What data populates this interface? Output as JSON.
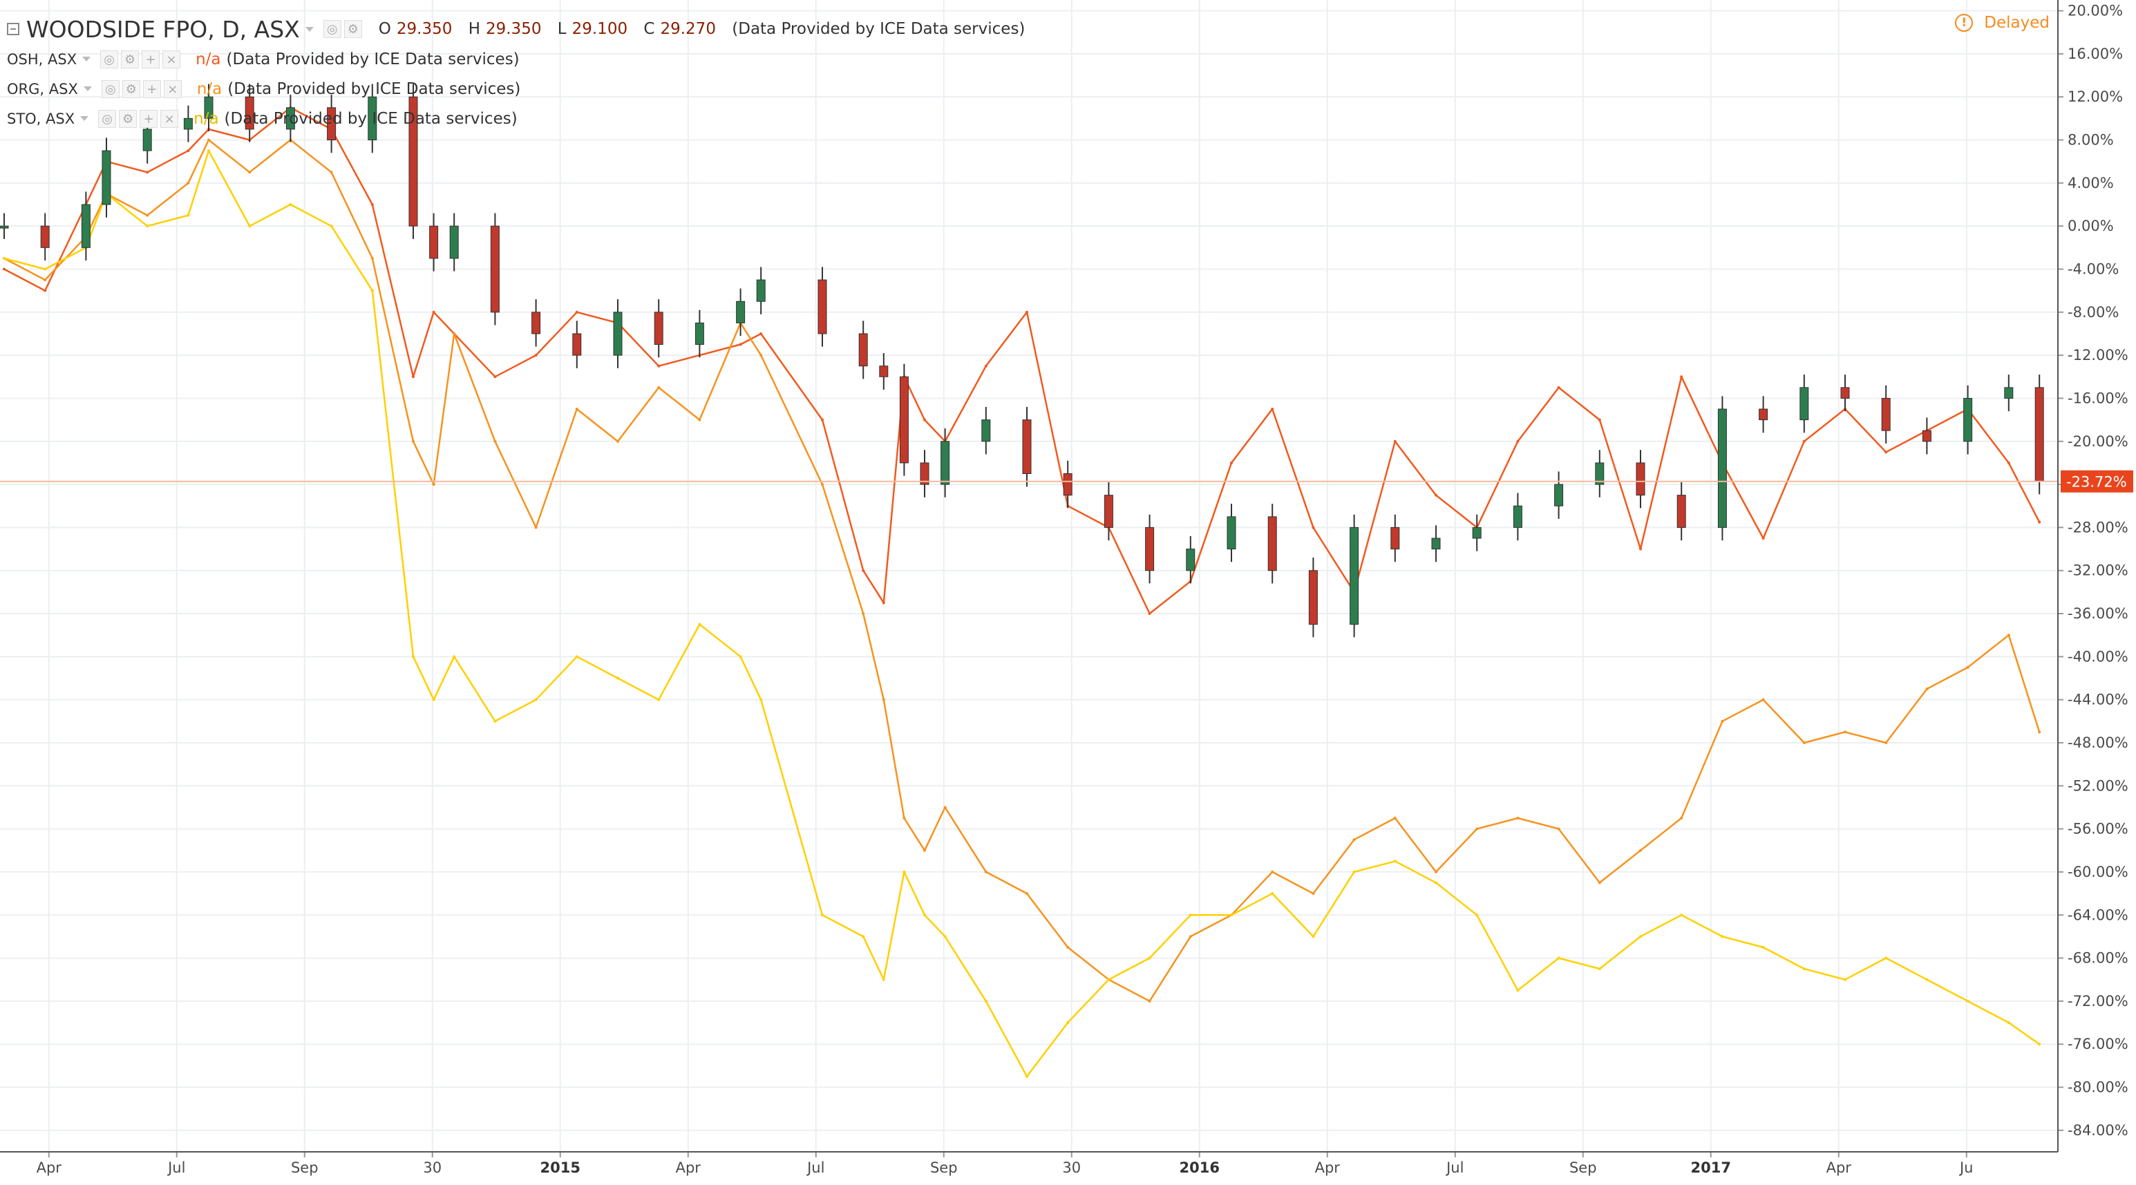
{
  "header": {
    "main_symbol": "WOODSIDE FPO, D, ASX",
    "ohlc": [
      {
        "key": "O",
        "value": "29.350"
      },
      {
        "key": "H",
        "value": "29.350"
      },
      {
        "key": "L",
        "value": "29.100"
      },
      {
        "key": "C",
        "value": "29.270"
      }
    ],
    "source": "(Data Provided by ICE Data services)",
    "compare": [
      {
        "symbol": "OSH, ASX",
        "value": "n/a",
        "source": "(Data Provided by ICE Data services)",
        "color": "#f25a1e"
      },
      {
        "symbol": "ORG, ASX",
        "value": "n/a",
        "source": "(Data Provided by ICE Data services)",
        "color": "#f6931e"
      },
      {
        "symbol": "STO, ASX",
        "value": "n/a",
        "source": "(Data Provided by ICE Data services)",
        "color": "#ffd000"
      }
    ],
    "delayed_label": "Delayed"
  },
  "chart_data": {
    "type": "line",
    "title": "WOODSIDE FPO, D, ASX",
    "xlabel": "",
    "ylabel": "",
    "y_unit": "%",
    "ylim": [
      -86,
      21
    ],
    "x_ticks": [
      "Apr",
      "Jul",
      "Sep",
      "30",
      "2015",
      "Apr",
      "Jul",
      "Sep",
      "30",
      "2016",
      "Apr",
      "Jul",
      "Sep",
      "2017",
      "Apr",
      "Ju"
    ],
    "bold_x_ticks": [
      "2015",
      "2016",
      "2017"
    ],
    "y_ticks": [
      "20.00%",
      "16.00%",
      "12.00%",
      "8.00%",
      "4.00%",
      "0.00%",
      "-4.00%",
      "-8.00%",
      "-12.00%",
      "-16.00%",
      "-20.00%",
      "-24.00%",
      "-28.00%",
      "-32.00%",
      "-36.00%",
      "-40.00%",
      "-44.00%",
      "-48.00%",
      "-52.00%",
      "-56.00%",
      "-60.00%",
      "-64.00%",
      "-68.00%",
      "-72.00%",
      "-76.00%",
      "-80.00%",
      "-84.00%"
    ],
    "current_value_label": "-23.72%",
    "current_value": -23.72,
    "grid": true,
    "x_index_range": [
      0,
      100
    ],
    "series": [
      {
        "name": "WOODSIDE FPO, D, ASX",
        "kind": "candlestick",
        "up_color": "#2e7d4f",
        "down_color": "#c0392b",
        "x": [
          0,
          2,
          4,
          5,
          7,
          9,
          10,
          12,
          14,
          16,
          18,
          20,
          21,
          22,
          24,
          26,
          28,
          30,
          32,
          34,
          36,
          37,
          40,
          42,
          43,
          44,
          45,
          46,
          48,
          50,
          52,
          54,
          56,
          58,
          60,
          62,
          64,
          66,
          68,
          70,
          72,
          74,
          76,
          78,
          80,
          82,
          84,
          86,
          88,
          90,
          92,
          94,
          96,
          98,
          99.5
        ],
        "values": [
          0,
          -2,
          2,
          7,
          9,
          10,
          12,
          9,
          11,
          8,
          12,
          0,
          -3,
          0,
          -8,
          -10,
          -12,
          -8,
          -11,
          -9,
          -7,
          -5,
          -10,
          -13,
          -14,
          -22,
          -24,
          -20,
          -18,
          -23,
          -25,
          -28,
          -32,
          -30,
          -27,
          -32,
          -37,
          -28,
          -30,
          -29,
          -28,
          -26,
          -24,
          -22,
          -25,
          -28,
          -17,
          -18,
          -15,
          -16,
          -19,
          -20,
          -16,
          -15,
          -23.72
        ]
      },
      {
        "name": "OSH, ASX",
        "kind": "line",
        "color": "#f25a1e",
        "x": [
          0,
          2,
          4,
          5,
          7,
          9,
          10,
          12,
          14,
          16,
          18,
          20,
          21,
          22,
          24,
          26,
          28,
          30,
          32,
          34,
          36,
          37,
          40,
          42,
          43,
          44,
          45,
          46,
          48,
          50,
          52,
          54,
          56,
          58,
          60,
          62,
          64,
          66,
          68,
          70,
          72,
          74,
          76,
          78,
          80,
          82,
          84,
          86,
          88,
          90,
          92,
          94,
          96,
          98,
          99.5
        ],
        "values": [
          -4,
          -6,
          2,
          6,
          5,
          7,
          9,
          8,
          11,
          9,
          2,
          -14,
          -8,
          -10,
          -14,
          -12,
          -8,
          -9,
          -13,
          -12,
          -11,
          -10,
          -18,
          -32,
          -35,
          -14,
          -18,
          -20,
          -13,
          -8,
          -26,
          -28,
          -36,
          -33,
          -22,
          -17,
          -28,
          -34,
          -20,
          -25,
          -28,
          -20,
          -15,
          -18,
          -30,
          -14,
          -22,
          -29,
          -20,
          -17,
          -21,
          -19,
          -17,
          -22,
          -27.5
        ]
      },
      {
        "name": "ORG, ASX",
        "kind": "line",
        "color": "#f6931e",
        "x": [
          0,
          2,
          4,
          5,
          7,
          9,
          10,
          12,
          14,
          16,
          18,
          20,
          21,
          22,
          24,
          26,
          28,
          30,
          32,
          34,
          36,
          37,
          40,
          42,
          43,
          44,
          45,
          46,
          48,
          50,
          52,
          54,
          56,
          58,
          60,
          62,
          64,
          66,
          68,
          70,
          72,
          74,
          76,
          78,
          80,
          82,
          84,
          86,
          88,
          90,
          92,
          94,
          96,
          98,
          99.5
        ],
        "values": [
          -3,
          -5,
          -1,
          3,
          1,
          4,
          8,
          5,
          8,
          5,
          -3,
          -20,
          -24,
          -10,
          -20,
          -28,
          -17,
          -20,
          -15,
          -18,
          -9,
          -12,
          -24,
          -36,
          -44,
          -55,
          -58,
          -54,
          -60,
          -62,
          -67,
          -70,
          -72,
          -66,
          -64,
          -60,
          -62,
          -57,
          -55,
          -60,
          -56,
          -55,
          -56,
          -61,
          -58,
          -55,
          -46,
          -44,
          -48,
          -47,
          -48,
          -43,
          -41,
          -38,
          -47
        ]
      },
      {
        "name": "STO, ASX",
        "kind": "line",
        "color": "#ffd000",
        "x": [
          0,
          2,
          4,
          5,
          7,
          9,
          10,
          12,
          14,
          16,
          18,
          20,
          21,
          22,
          24,
          26,
          28,
          30,
          32,
          34,
          36,
          37,
          40,
          42,
          43,
          44,
          45,
          46,
          48,
          50,
          52,
          54,
          56,
          58,
          60,
          62,
          64,
          66,
          68,
          70,
          72,
          74,
          76,
          78,
          80,
          82,
          84,
          86,
          88,
          90,
          92,
          94,
          96,
          98,
          99.5
        ],
        "values": [
          -3,
          -4,
          -2,
          3,
          0,
          1,
          7,
          0,
          2,
          0,
          -6,
          -40,
          -44,
          -40,
          -46,
          -44,
          -40,
          -42,
          -44,
          -37,
          -40,
          -44,
          -64,
          -66,
          -70,
          -60,
          -64,
          -66,
          -72,
          -79,
          -74,
          -70,
          -68,
          -64,
          -64,
          -62,
          -66,
          -60,
          -59,
          -61,
          -64,
          -71,
          -68,
          -69,
          -66,
          -64,
          -66,
          -67,
          -69,
          -70,
          -68,
          -70,
          -72,
          -74,
          -76
        ]
      }
    ]
  }
}
